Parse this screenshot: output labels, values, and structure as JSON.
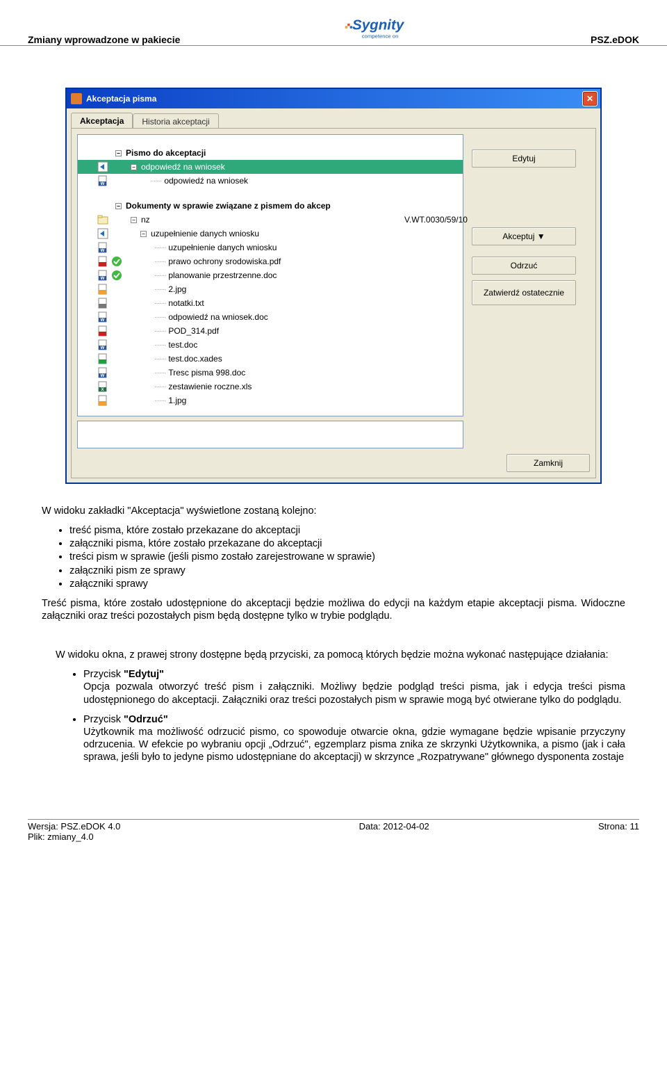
{
  "header": {
    "left": "Zmiany wprowadzone w pakiecie",
    "right": "PSZ.eDOK",
    "logo_text": "Sygnity",
    "logo_tagline": "competence on",
    "logo_color": "#1a5fb4"
  },
  "window": {
    "title": "Akceptacja pisma",
    "close_glyph": "✕",
    "tabs": [
      {
        "label": "Akceptacja",
        "active": true
      },
      {
        "label": "Historia akceptacji",
        "active": false
      }
    ],
    "tree": {
      "section1": {
        "label": "Pismo do akceptacji"
      },
      "row_hl": {
        "label": "odpowiedź na wniosek"
      },
      "rows1": [
        {
          "icon": "word",
          "label": "odpowiedź na wniosek"
        }
      ],
      "section2": {
        "label": "Dokumenty w sprawie związane z pismem do akcep"
      },
      "row_nz": {
        "icon": "folder",
        "label": "nz",
        "ref": "V.WT.0030/59/10"
      },
      "row_uzup_parent": {
        "icon": "arrow",
        "label": "uzupełnienie danych wniosku"
      },
      "rows2": [
        {
          "icon": "word",
          "status": "",
          "label": "uzupełnienie danych wniosku"
        },
        {
          "icon": "pdf",
          "status": "ok",
          "label": "prawo ochrony srodowiska.pdf"
        },
        {
          "icon": "word",
          "status": "ok",
          "label": "planowanie przestrzenne.doc"
        },
        {
          "icon": "img",
          "status": "",
          "label": "2.jpg"
        },
        {
          "icon": "txt",
          "status": "",
          "label": "notatki.txt"
        },
        {
          "icon": "word",
          "status": "",
          "label": "odpowiedź na wniosek.doc"
        },
        {
          "icon": "pdf",
          "status": "",
          "label": "POD_314.pdf"
        },
        {
          "icon": "word",
          "status": "",
          "label": "test.doc"
        },
        {
          "icon": "cert",
          "status": "",
          "label": "test.doc.xades"
        },
        {
          "icon": "word",
          "status": "",
          "label": "Tresc pisma 998.doc"
        },
        {
          "icon": "xls",
          "status": "",
          "label": "zestawienie roczne.xls"
        },
        {
          "icon": "img",
          "status": "",
          "label": "1.jpg"
        }
      ]
    },
    "buttons": {
      "edit": "Edytuj",
      "accept": "Akceptuj  ▼",
      "reject": "Odrzuć",
      "final": "Zatwierdź ostatecznie",
      "close": "Zamknij"
    },
    "button_spacing": {
      "after_edit": 86,
      "after_accept": 16,
      "after_reject": 8
    }
  },
  "body": {
    "p1": "W widoku zakładki \"Akceptacja\" wyświetlone zostaną kolejno:",
    "list1": [
      "treść pisma, które zostało przekazane do akceptacji",
      "załączniki pisma, które zostało przekazane do akceptacji",
      "treści pism w sprawie (jeśli pismo zostało zarejestrowane w sprawie)",
      "załączniki  pism  ze sprawy",
      "załączniki sprawy"
    ],
    "p2": "Treść pisma, które zostało udostępnione do akceptacji będzie możliwa do edycji na każdym etapie akceptacji pisma. Widoczne załączniki oraz treści pozostałych pism będą dostępne tylko w trybie podglądu.",
    "p3": "W widoku okna, z prawej strony dostępne będą  przyciski, za pomocą których będzie można wykonać  następujące działania:",
    "btn_list": [
      {
        "title": "Przycisk \"Edytuj\"",
        "desc": "Opcja pozwala otworzyć treść pism i załączniki. Możliwy będzie podgląd treści pisma, jak i edycja  treści pisma udostępnionego do akceptacji. Załączniki oraz treści pozostałych pism w sprawie mogą być otwierane tylko do podglądu."
      },
      {
        "title": "Przycisk \"Odrzuć\"",
        "desc": "Użytkownik ma możliwość odrzucić pismo, co spowoduje otwarcie okna, gdzie wymagane będzie wpisanie przyczyny odrzucenia. W efekcie po wybraniu opcji „Odrzuć\",  egzemplarz pisma znika ze skrzynki Użytkownika, a pismo (jak i cała sprawa, jeśli było to jedyne pismo udostępniane do akceptacji) w skrzynce „Rozpatrywane\" głównego dysponenta zostaje"
      }
    ]
  },
  "footer": {
    "left1": "Wersja: PSZ.eDOK 4.0",
    "left2": "Plik: zmiany_4.0",
    "mid": "Data: 2012-04-02",
    "right": "Strona: 11"
  },
  "icons": {
    "word": {
      "bg": "#ffffff",
      "border": "#888",
      "badge": "#2b579a",
      "text": "W"
    },
    "pdf": {
      "bg": "#ffffff",
      "border": "#888",
      "badge": "#cc2020",
      "text": ""
    },
    "img": {
      "bg": "#ffffff",
      "border": "#888",
      "badge": "#f0a030",
      "text": ""
    },
    "txt": {
      "bg": "#ffffff",
      "border": "#888",
      "badge": "#777777",
      "text": ""
    },
    "xls": {
      "bg": "#ffffff",
      "border": "#888",
      "badge": "#1f7244",
      "text": "X"
    },
    "cert": {
      "bg": "#ffffff",
      "border": "#888",
      "badge": "#20a040",
      "text": ""
    },
    "folder": {
      "bg": "#f5eec0",
      "border": "#caa93e"
    },
    "arrow": {
      "bg": "#ffffff",
      "border": "#888"
    },
    "ok": {
      "bg": "#3fb93f"
    }
  }
}
